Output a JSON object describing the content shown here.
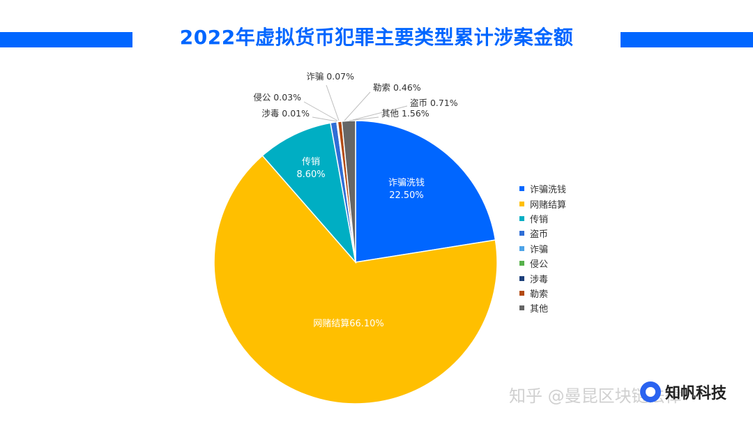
{
  "title": "2022年虚拟货币犯罪主要类型累计涉案金额",
  "chart_data": {
    "type": "pie",
    "slices": [
      {
        "name": "诈骗洗钱",
        "value": 22.5,
        "label": "22.50%",
        "color": "#0066ff"
      },
      {
        "name": "网赌结算",
        "value": 66.1,
        "label": "66.10%",
        "color": "#ffbf00"
      },
      {
        "name": "传销",
        "value": 8.6,
        "label": "8.60%",
        "color": "#00aec3"
      },
      {
        "name": "盗币",
        "value": 0.71,
        "label": "0.71%",
        "color": "#2f6ed6"
      },
      {
        "name": "诈骗",
        "value": 0.07,
        "label": "0.07%",
        "color": "#4da3e8"
      },
      {
        "name": "侵公",
        "value": 0.03,
        "label": "0.03%",
        "color": "#57b14b"
      },
      {
        "name": "涉毒",
        "value": 0.01,
        "label": "0.01%",
        "color": "#1c3f7a"
      },
      {
        "name": "勒索",
        "value": 0.46,
        "label": "0.46%",
        "color": "#b34a12"
      },
      {
        "name": "其他",
        "value": 1.56,
        "label": "1.56%",
        "color": "#666666"
      }
    ],
    "legend_position": "right"
  },
  "watermark": "知乎 @曼昆区块链法律",
  "brand": "知帆科技"
}
